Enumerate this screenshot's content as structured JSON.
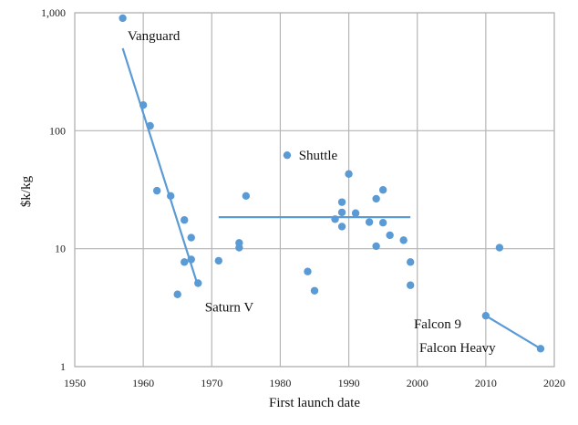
{
  "chart_data": {
    "type": "scatter",
    "xlabel": "First launch date",
    "ylabel": "$k/kg",
    "xlim": [
      1950,
      2020
    ],
    "ylim": [
      1,
      1000
    ],
    "yscale": "log",
    "grid": true,
    "x_ticks": [
      "1950",
      "1960",
      "1970",
      "1980",
      "1990",
      "2000",
      "2010",
      "2020"
    ],
    "y_ticks": [
      {
        "value": 1,
        "label": "1"
      },
      {
        "value": 10,
        "label": "10"
      },
      {
        "value": 100,
        "label": "100"
      },
      {
        "value": 1000,
        "label": "1,000"
      }
    ],
    "color": "#5b9bd5",
    "points": [
      {
        "x": 1957,
        "y": 900
      },
      {
        "x": 1960,
        "y": 165
      },
      {
        "x": 1961,
        "y": 110
      },
      {
        "x": 1962,
        "y": 31
      },
      {
        "x": 1964,
        "y": 28
      },
      {
        "x": 1965,
        "y": 4.1
      },
      {
        "x": 1966,
        "y": 17.5
      },
      {
        "x": 1966,
        "y": 7.7
      },
      {
        "x": 1967,
        "y": 12.4
      },
      {
        "x": 1967,
        "y": 8.1
      },
      {
        "x": 1968,
        "y": 5.1
      },
      {
        "x": 1971,
        "y": 7.9
      },
      {
        "x": 1974,
        "y": 11.2
      },
      {
        "x": 1974,
        "y": 10.2
      },
      {
        "x": 1975,
        "y": 28
      },
      {
        "x": 1981,
        "y": 62
      },
      {
        "x": 1984,
        "y": 6.4
      },
      {
        "x": 1985,
        "y": 4.4
      },
      {
        "x": 1988,
        "y": 17.8
      },
      {
        "x": 1989,
        "y": 24.8
      },
      {
        "x": 1989,
        "y": 20.3
      },
      {
        "x": 1989,
        "y": 15.4
      },
      {
        "x": 1990,
        "y": 43
      },
      {
        "x": 1991,
        "y": 20
      },
      {
        "x": 1993,
        "y": 16.8
      },
      {
        "x": 1994,
        "y": 26.5
      },
      {
        "x": 1994,
        "y": 10.5
      },
      {
        "x": 1995,
        "y": 31.5
      },
      {
        "x": 1995,
        "y": 16.6
      },
      {
        "x": 1996,
        "y": 13
      },
      {
        "x": 1998,
        "y": 11.8
      },
      {
        "x": 1999,
        "y": 7.7
      },
      {
        "x": 1999,
        "y": 4.9
      },
      {
        "x": 2010,
        "y": 2.7
      },
      {
        "x": 2012,
        "y": 10.2
      },
      {
        "x": 2018,
        "y": 1.42
      }
    ],
    "trend_lines": [
      {
        "x": [
          1957,
          1968
        ],
        "y": [
          500,
          4.8
        ]
      },
      {
        "x": [
          1971,
          1999
        ],
        "y": [
          18.5,
          18.5
        ]
      },
      {
        "x": [
          2010,
          2018
        ],
        "y": [
          2.7,
          1.42
        ]
      }
    ],
    "annotations": [
      {
        "text": "Vanguard",
        "x": 1957.7,
        "y": 640
      },
      {
        "text": "Shuttle",
        "x": 1982.7,
        "y": 62
      },
      {
        "text": "Saturn V",
        "x": 1969,
        "y": 3.2
      },
      {
        "text": "Falcon 9",
        "x": 1999.5,
        "y": 2.3
      },
      {
        "text": "Falcon Heavy",
        "x": 2000.3,
        "y": 1.45
      }
    ]
  }
}
